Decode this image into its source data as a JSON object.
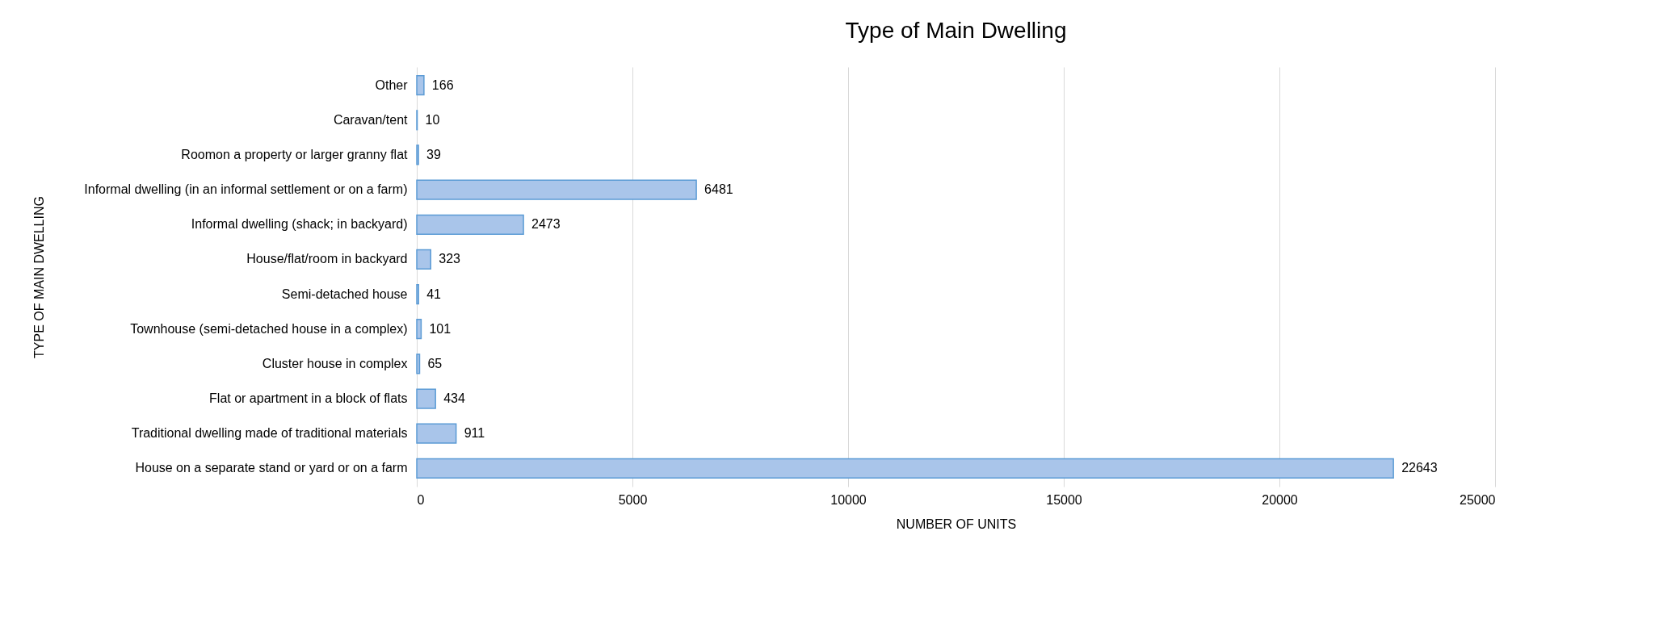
{
  "chart_data": {
    "type": "bar",
    "orientation": "horizontal",
    "title": "Type of Main Dwelling",
    "xlabel": "NUMBER OF UNITS",
    "ylabel": "TYPE OF MAIN DWELLING",
    "categories": [
      "Other",
      "Caravan/tent",
      "Roomon a property or larger granny flat",
      "Informal dwelling (in an informal settlement or on a farm)",
      "Informal dwelling (shack; in backyard)",
      "House/flat/room in backyard",
      "Semi-detached house",
      "Townhouse (semi-detached house in a complex)",
      "Cluster house in complex",
      "Flat or apartment in a block of flats",
      "Traditional dwelling made of traditional materials",
      "House on a separate stand or yard or on a farm"
    ],
    "values": [
      166,
      10,
      39,
      6481,
      2473,
      323,
      41,
      101,
      65,
      434,
      911,
      22643
    ],
    "color": "#a9c5ea",
    "xlim": [
      0,
      25000
    ],
    "xticks": [
      0,
      5000,
      10000,
      15000,
      20000,
      25000
    ],
    "grid": "x",
    "data_labels": true
  }
}
